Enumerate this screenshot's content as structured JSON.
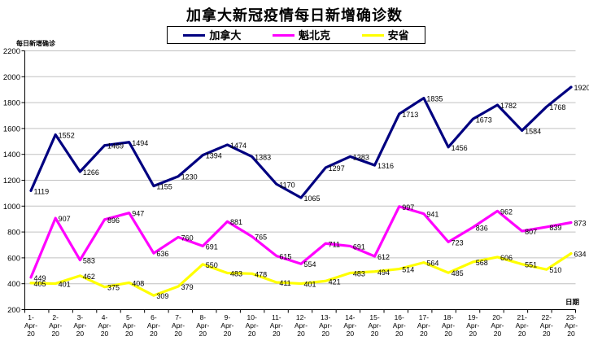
{
  "title": "加拿大新冠疫情每日新增确诊数",
  "y_axis_unit_label": "每日新增确诊",
  "x_axis_title": "日期",
  "colors": {
    "canada": "#000080",
    "quebec": "#FF00FF",
    "ontario": "#FFFF00",
    "gridline": "#C0C0C0",
    "axis": "#000000"
  },
  "chart_data": {
    "type": "line",
    "title": "加拿大新冠疫情每日新增确诊数",
    "xlabel": "日期",
    "ylabel": "每日新增确诊",
    "ylim": [
      200,
      2200
    ],
    "y_tick_step": 200,
    "grid": true,
    "legend_position": "top",
    "data_labels": true,
    "categories": [
      "1-Apr-20",
      "2-Apr-20",
      "3-Apr-20",
      "4-Apr-20",
      "5-Apr-20",
      "6-Apr-20",
      "7-Apr-20",
      "8-Apr-20",
      "9-Apr-20",
      "10-Apr-20",
      "11-Apr-20",
      "12-Apr-20",
      "13-Apr-20",
      "14-Apr-20",
      "15-Apr-20",
      "16-Apr-20",
      "17-Apr-20",
      "18-Apr-20",
      "19-Apr-20",
      "20-Apr-20",
      "21-Apr-20",
      "22-Apr-20",
      "23-Apr-20"
    ],
    "series": [
      {
        "name": "加拿大",
        "color": "#000080",
        "values": [
          1119,
          1552,
          1266,
          1469,
          1494,
          1155,
          1230,
          1394,
          1474,
          1383,
          1170,
          1065,
          1297,
          1383,
          1316,
          1713,
          1835,
          1456,
          1673,
          1782,
          1584,
          1768,
          1920
        ]
      },
      {
        "name": "魁北克",
        "color": "#FF00FF",
        "values": [
          449,
          907,
          583,
          896,
          947,
          636,
          760,
          691,
          881,
          765,
          615,
          554,
          711,
          691,
          612,
          997,
          941,
          723,
          836,
          962,
          807,
          839,
          873
        ]
      },
      {
        "name": "安省",
        "color": "#FFFF00",
        "values": [
          405,
          401,
          462,
          375,
          408,
          309,
          379,
          550,
          483,
          478,
          411,
          401,
          421,
          483,
          494,
          514,
          564,
          485,
          568,
          606,
          551,
          510,
          634
        ]
      }
    ]
  }
}
